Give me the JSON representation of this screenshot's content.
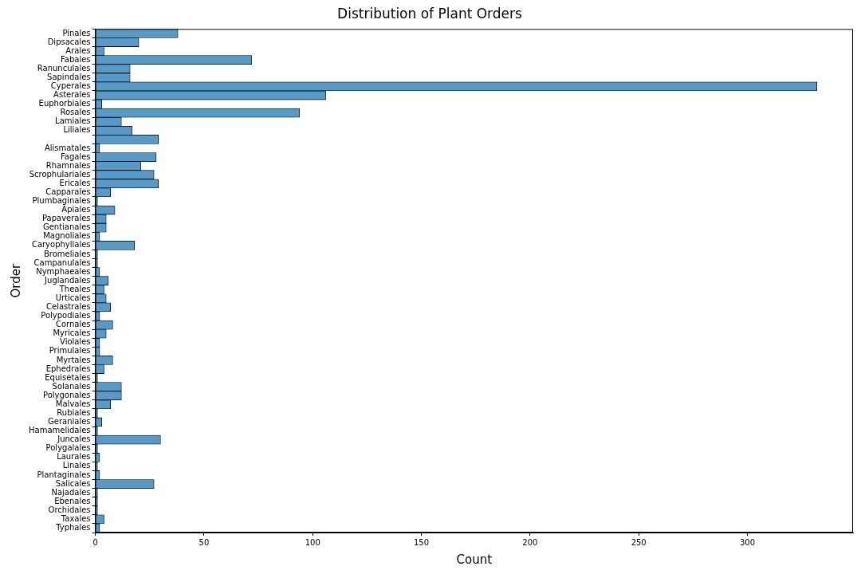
{
  "chart_data": {
    "type": "bar",
    "orientation": "horizontal",
    "title": "Distribution of Plant Orders",
    "xlabel": "Count",
    "ylabel": "Order",
    "categories": [
      "Pinales",
      "Dipsacales",
      "Arales",
      "Fabales",
      "Ranunculales",
      "Sapindales",
      "Cyperales",
      "Asterales",
      "Euphorbiales",
      "Rosales",
      "Lamiales",
      "Liliales",
      null,
      "Alismatales",
      "Fagales",
      "Rhamnales",
      "Scrophulariales",
      "Ericales",
      "Capparales",
      "Plumbaginales",
      "Apiales",
      "Papaverales",
      "Gentianales",
      "Magnoliales",
      "Caryophyllales",
      "Bromeliales",
      "Campanulales",
      "Nymphaeales",
      "Juglandales",
      "Theales",
      "Urticales",
      "Celastrales",
      "Polypodiales",
      "Cornales",
      "Myricales",
      "Violales",
      "Primulales",
      "Myrtales",
      "Ephedrales",
      "Equisetales",
      "Solanales",
      "Polygonales",
      "Malvales",
      "Rubiales",
      "Geraniales",
      "Hamamelidales",
      "Juncales",
      "Polygalales",
      "Laurales",
      "Linales",
      "Plantaginales",
      "Salicales",
      "Najadales",
      "Ebenales",
      "Orchidales",
      "Taxales",
      "Typhales"
    ],
    "values": [
      38,
      20,
      4,
      72,
      16,
      16,
      332,
      106,
      3,
      94,
      12,
      17,
      29,
      2,
      28,
      21,
      27,
      29,
      7,
      1,
      9,
      5,
      5,
      2,
      18,
      1,
      1,
      2,
      6,
      4,
      5,
      7,
      2,
      8,
      5,
      2,
      2,
      8,
      4,
      1,
      12,
      12,
      7,
      1,
      3,
      1,
      30,
      1,
      2,
      1,
      2,
      27,
      1,
      1,
      1,
      4,
      2
    ],
    "color": "#5799c7",
    "xlim": [
      0,
      348.6
    ],
    "xticks": [
      0,
      50,
      100,
      150,
      200,
      250,
      300
    ],
    "grid": false
  }
}
